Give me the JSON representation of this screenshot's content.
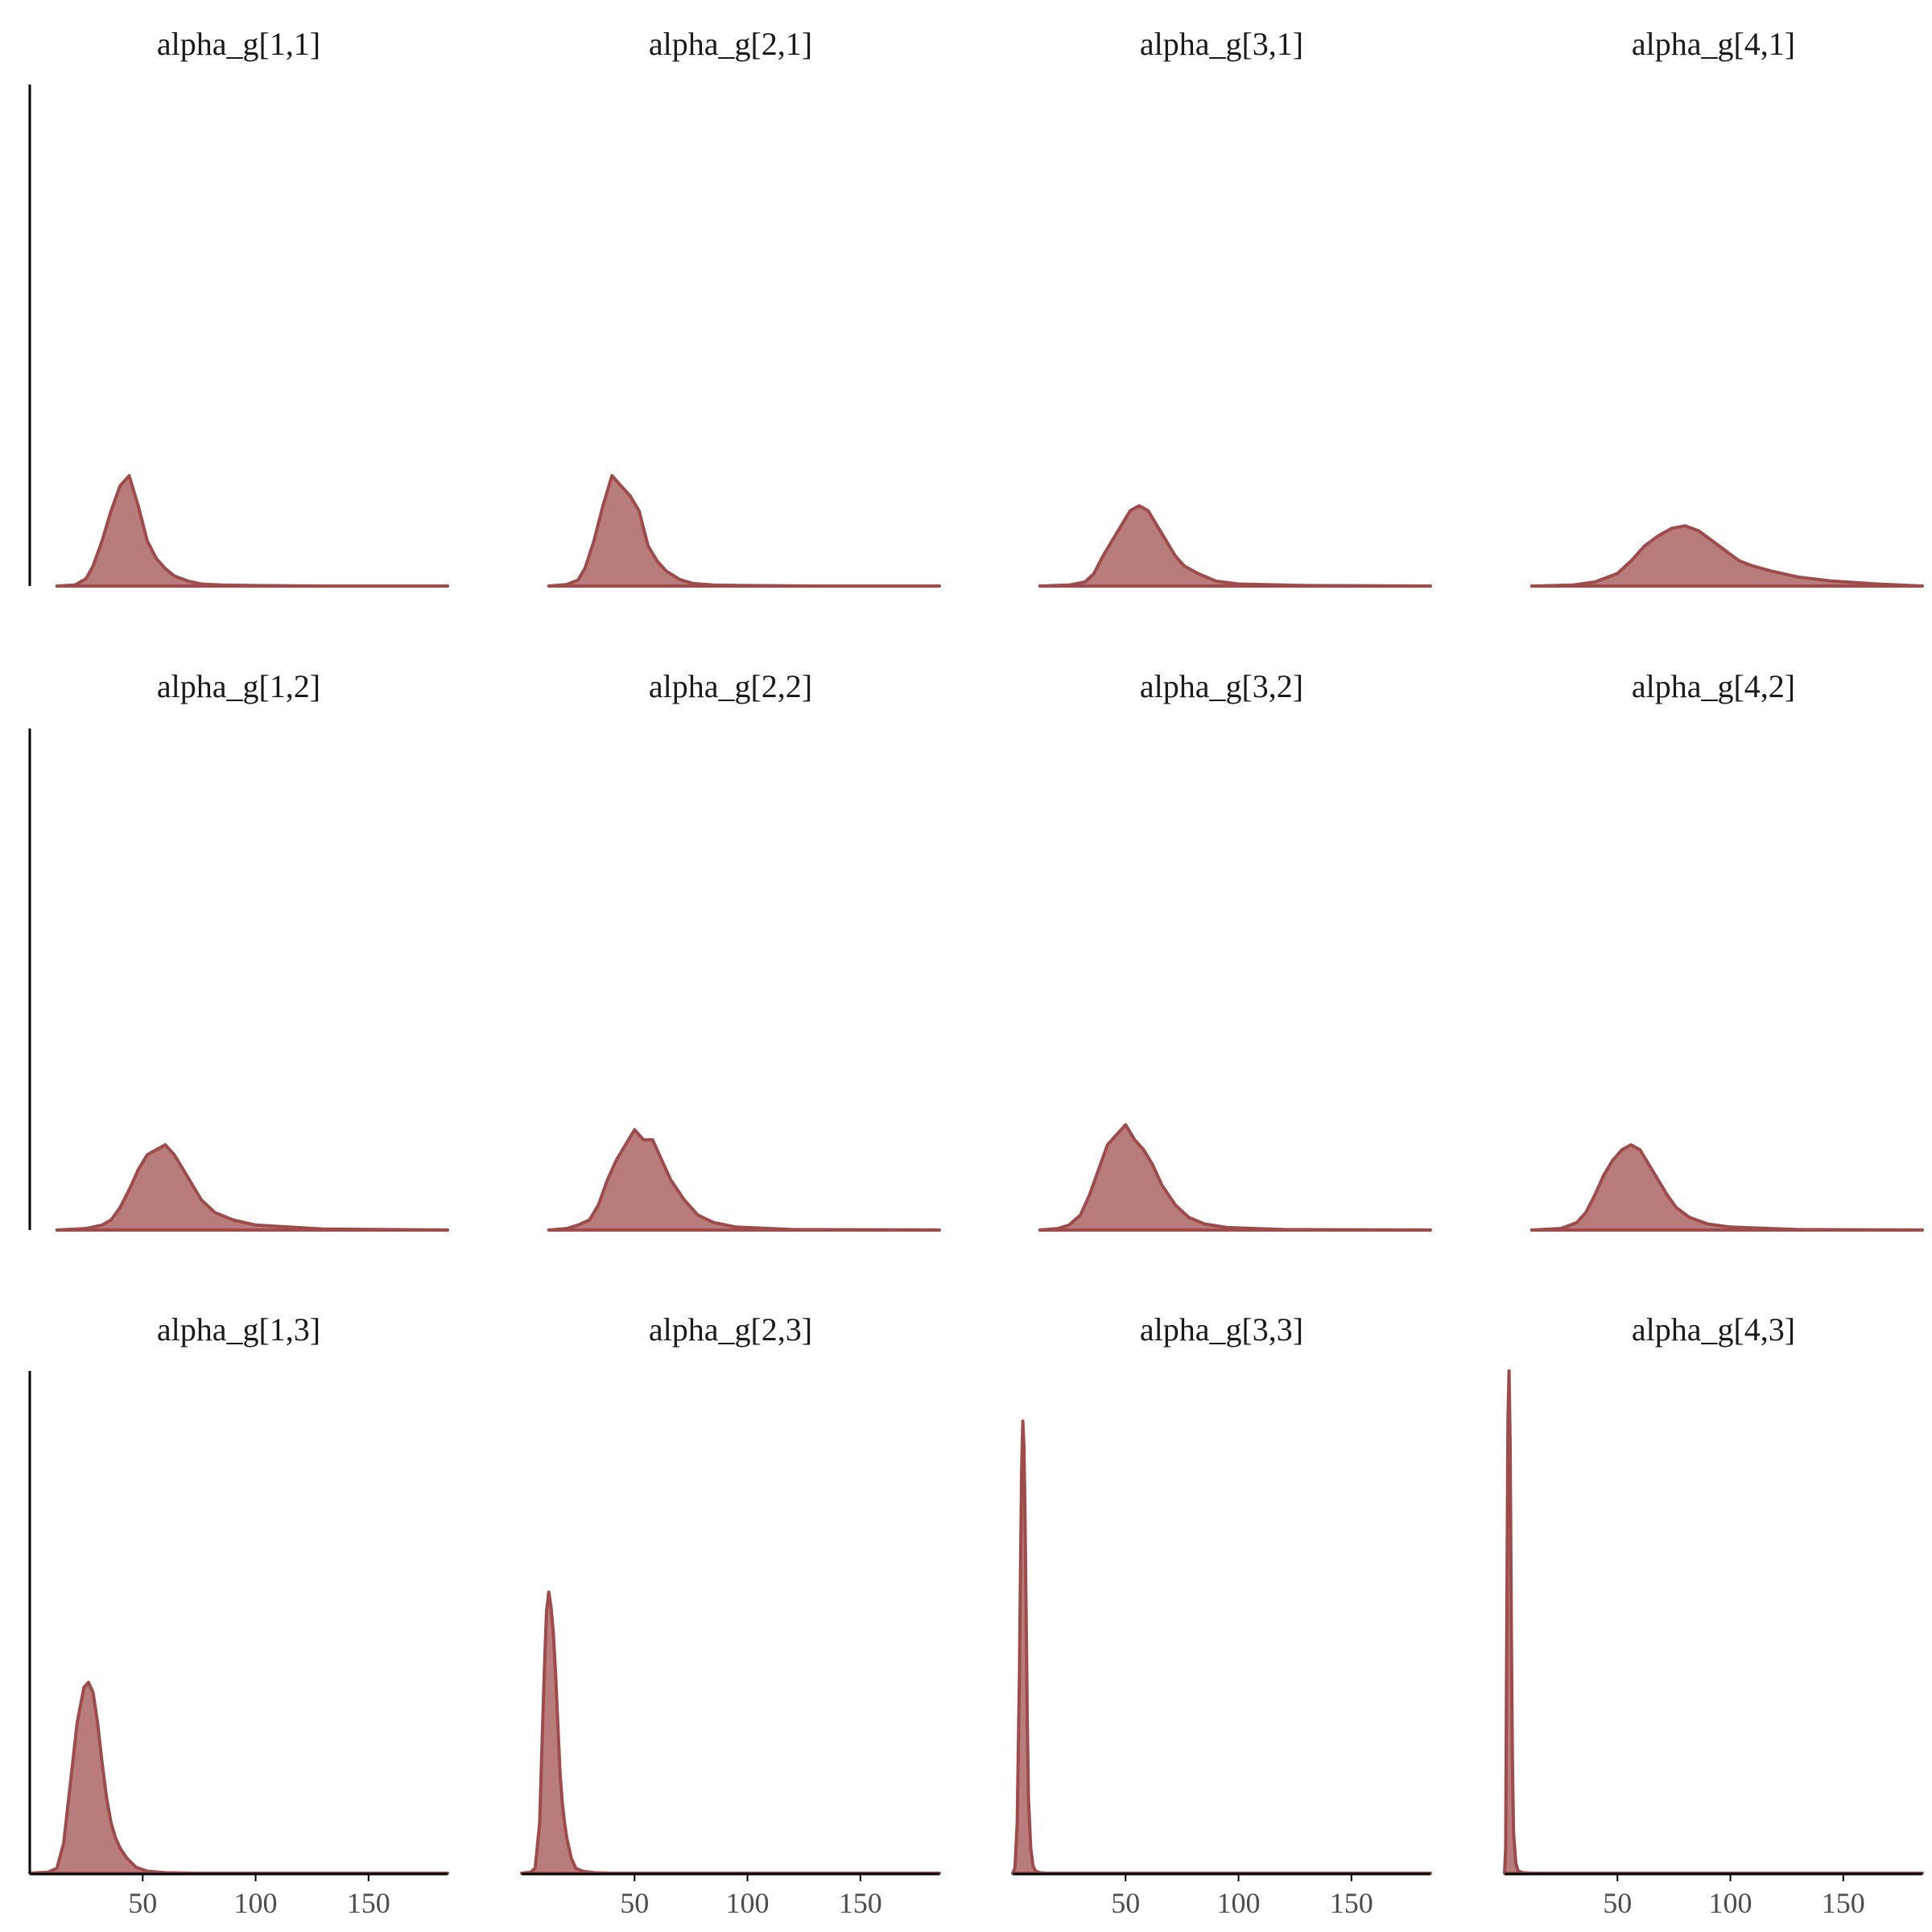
{
  "chart_data": {
    "type": "area",
    "chart_kind": "density",
    "layout": {
      "columns": 4,
      "rows": 3
    },
    "colors": {
      "fill": "#b87c7c",
      "line": "#9e4b4b",
      "axis": "#000000",
      "tick_text": "#4d4d4d",
      "title_text": "#1a1a1a"
    },
    "xlim": [
      0,
      185
    ],
    "xticks": [
      50,
      100,
      150
    ],
    "x_axis_shown_on_row": 3,
    "y_axis_shown_on_column": 1,
    "ylim": [
      0,
      1
    ],
    "grid": false,
    "panels": [
      {
        "title": "alpha_g[1,1]",
        "x": [
          12,
          20,
          25,
          28,
          32,
          36,
          40,
          44,
          48,
          52,
          56,
          60,
          64,
          70,
          76,
          85,
          100,
          130,
          185
        ],
        "y": [
          0,
          0.002,
          0.015,
          0.04,
          0.09,
          0.15,
          0.2,
          0.22,
          0.16,
          0.09,
          0.055,
          0.035,
          0.02,
          0.01,
          0.004,
          0.002,
          0.001,
          0,
          0
        ]
      },
      {
        "title": "alpha_g[2,1]",
        "x": [
          12,
          20,
          25,
          28,
          32,
          36,
          40,
          44,
          48,
          52,
          56,
          60,
          64,
          70,
          76,
          85,
          100,
          130,
          185
        ],
        "y": [
          0,
          0.003,
          0.012,
          0.035,
          0.09,
          0.16,
          0.22,
          0.2,
          0.18,
          0.15,
          0.08,
          0.05,
          0.03,
          0.013,
          0.005,
          0.002,
          0.001,
          0,
          0
        ]
      },
      {
        "title": "alpha_g[3,1]",
        "x": [
          12,
          25,
          32,
          36,
          40,
          44,
          48,
          52,
          56,
          60,
          64,
          68,
          72,
          76,
          82,
          90,
          100,
          130,
          185
        ],
        "y": [
          0,
          0.002,
          0.008,
          0.025,
          0.06,
          0.09,
          0.12,
          0.15,
          0.16,
          0.15,
          0.12,
          0.09,
          0.06,
          0.04,
          0.025,
          0.01,
          0.004,
          0.001,
          0
        ]
      },
      {
        "title": "alpha_g[4,1]",
        "x": [
          12,
          30,
          40,
          50,
          56,
          62,
          68,
          74,
          80,
          86,
          92,
          98,
          104,
          110,
          118,
          130,
          145,
          165,
          185
        ],
        "y": [
          0,
          0.002,
          0.008,
          0.025,
          0.05,
          0.08,
          0.1,
          0.115,
          0.12,
          0.11,
          0.09,
          0.07,
          0.05,
          0.04,
          0.03,
          0.018,
          0.01,
          0.004,
          0
        ]
      },
      {
        "title": "alpha_g[1,2]",
        "x": [
          12,
          25,
          32,
          36,
          40,
          44,
          48,
          52,
          56,
          60,
          64,
          68,
          72,
          76,
          82,
          90,
          100,
          130,
          185
        ],
        "y": [
          0,
          0.003,
          0.01,
          0.02,
          0.045,
          0.08,
          0.12,
          0.15,
          0.16,
          0.17,
          0.15,
          0.12,
          0.09,
          0.06,
          0.035,
          0.02,
          0.01,
          0.002,
          0
        ]
      },
      {
        "title": "alpha_g[2,2]",
        "x": [
          12,
          20,
          25,
          30,
          34,
          38,
          42,
          46,
          50,
          54,
          58,
          62,
          66,
          72,
          78,
          85,
          95,
          120,
          185
        ],
        "y": [
          0,
          0.003,
          0.01,
          0.02,
          0.05,
          0.1,
          0.14,
          0.17,
          0.2,
          0.18,
          0.18,
          0.14,
          0.1,
          0.06,
          0.03,
          0.015,
          0.006,
          0.001,
          0
        ]
      },
      {
        "title": "alpha_g[3,2]",
        "x": [
          12,
          20,
          25,
          30,
          34,
          38,
          42,
          46,
          50,
          54,
          58,
          62,
          66,
          72,
          78,
          85,
          95,
          120,
          185
        ],
        "y": [
          0,
          0.003,
          0.01,
          0.03,
          0.07,
          0.12,
          0.17,
          0.19,
          0.21,
          0.18,
          0.16,
          0.13,
          0.09,
          0.05,
          0.025,
          0.012,
          0.005,
          0.001,
          0
        ]
      },
      {
        "title": "alpha_g[4,2]",
        "x": [
          12,
          25,
          32,
          36,
          40,
          44,
          48,
          52,
          56,
          60,
          64,
          68,
          72,
          76,
          82,
          90,
          100,
          130,
          185
        ],
        "y": [
          0,
          0.003,
          0.015,
          0.035,
          0.07,
          0.11,
          0.14,
          0.16,
          0.17,
          0.16,
          0.13,
          0.1,
          0.07,
          0.045,
          0.025,
          0.012,
          0.006,
          0.001,
          0
        ]
      },
      {
        "title": "alpha_g[1,3]",
        "x": [
          0,
          8,
          12,
          15,
          18,
          21,
          24,
          26,
          28,
          30,
          32,
          34,
          36,
          38,
          40,
          43,
          47,
          52,
          60,
          75,
          185
        ],
        "y": [
          0,
          0.002,
          0.01,
          0.06,
          0.18,
          0.3,
          0.37,
          0.38,
          0.36,
          0.3,
          0.22,
          0.15,
          0.1,
          0.07,
          0.05,
          0.03,
          0.012,
          0.004,
          0.001,
          0,
          0
        ]
      },
      {
        "title": "alpha_g[2,3]",
        "x": [
          0,
          4,
          6,
          8,
          9,
          10,
          11,
          12,
          13,
          14,
          15,
          16,
          17,
          18,
          19,
          20,
          22,
          24,
          27,
          32,
          40,
          60,
          185
        ],
        "y": [
          0,
          0.002,
          0.01,
          0.1,
          0.25,
          0.4,
          0.52,
          0.56,
          0.53,
          0.48,
          0.4,
          0.3,
          0.2,
          0.14,
          0.1,
          0.07,
          0.03,
          0.01,
          0.004,
          0.001,
          0,
          0,
          0
        ]
      },
      {
        "title": "alpha_g[3,3]",
        "x": [
          0,
          1,
          2,
          3,
          3.5,
          4,
          4.5,
          5,
          5.5,
          6,
          6.5,
          7,
          8,
          9,
          10,
          12,
          15,
          20,
          185
        ],
        "y": [
          0,
          0.01,
          0.1,
          0.4,
          0.62,
          0.81,
          0.9,
          0.85,
          0.7,
          0.5,
          0.3,
          0.15,
          0.05,
          0.015,
          0.005,
          0.001,
          0,
          0,
          0
        ]
      },
      {
        "title": "alpha_g[4,3]",
        "x": [
          0,
          0.5,
          1,
          1.5,
          2,
          2.5,
          3,
          3.5,
          4,
          5,
          6,
          8,
          12,
          185
        ],
        "y": [
          0,
          0.05,
          0.5,
          0.9,
          1.0,
          0.85,
          0.5,
          0.22,
          0.08,
          0.02,
          0.005,
          0.001,
          0,
          0
        ]
      }
    ]
  }
}
